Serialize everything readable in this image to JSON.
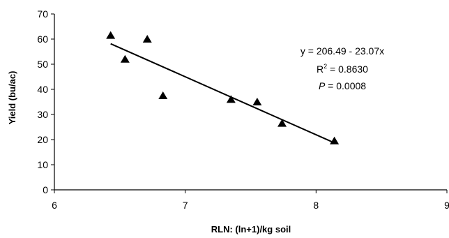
{
  "chart_data": {
    "type": "scatter",
    "xlabel": "RLN:  (ln+1)/kg soil",
    "ylabel": "Yield (bu/ac)",
    "xlim": [
      6,
      9
    ],
    "ylim": [
      0,
      70
    ],
    "x_ticks": [
      6,
      7,
      8,
      9
    ],
    "y_ticks": [
      0,
      10,
      20,
      30,
      40,
      50,
      60,
      70
    ],
    "grid": false,
    "marker": "triangle",
    "points": [
      {
        "x": 6.43,
        "y": 61.5
      },
      {
        "x": 6.54,
        "y": 52.0
      },
      {
        "x": 6.71,
        "y": 60.0
      },
      {
        "x": 6.83,
        "y": 37.5
      },
      {
        "x": 7.35,
        "y": 36.0
      },
      {
        "x": 7.55,
        "y": 35.0
      },
      {
        "x": 7.74,
        "y": 26.5
      },
      {
        "x": 8.14,
        "y": 19.5
      }
    ],
    "trendline": {
      "intercept": 206.49,
      "slope": -23.07,
      "x_start": 6.43,
      "x_end": 8.14
    },
    "annotations": {
      "equation": "y = 206.49 - 23.07x",
      "r2_label": "R",
      "r2_sup": "2",
      "r2_value": " = 0.8630",
      "p_label": "P",
      "p_value": " = 0.0008"
    }
  }
}
